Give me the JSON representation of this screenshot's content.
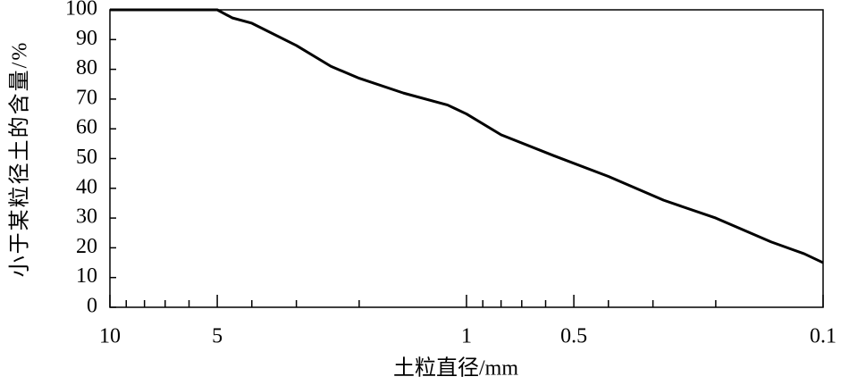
{
  "chart_data": {
    "type": "line",
    "xlabel": "土粒直径/mm",
    "ylabel": "小于某粒径土的含量/%",
    "xscale": "log",
    "xlim": [
      10,
      0.1
    ],
    "xticks": [
      10,
      5,
      1,
      0.5,
      0.1
    ],
    "xminorticks": [
      9,
      8,
      7,
      6,
      4,
      3,
      2,
      0.9,
      0.8,
      0.7,
      0.6,
      0.4,
      0.3,
      0.2
    ],
    "ylim": [
      0,
      100
    ],
    "yticks": [
      0,
      10,
      20,
      30,
      40,
      50,
      60,
      70,
      80,
      90,
      100
    ],
    "grid": false,
    "series": [
      {
        "color": "#000000",
        "x": [
          10,
          5,
          4.54,
          4,
          3,
          2.4,
          2,
          1.5,
          1.13,
          1,
          0.8,
          0.57,
          0.4,
          0.28,
          0.2,
          0.14,
          0.113,
          0.1
        ],
        "values": [
          100,
          100,
          97.3,
          95.5,
          88,
          81,
          77,
          72,
          68,
          65,
          58,
          51,
          44,
          36,
          30,
          22,
          18,
          15
        ]
      }
    ]
  }
}
